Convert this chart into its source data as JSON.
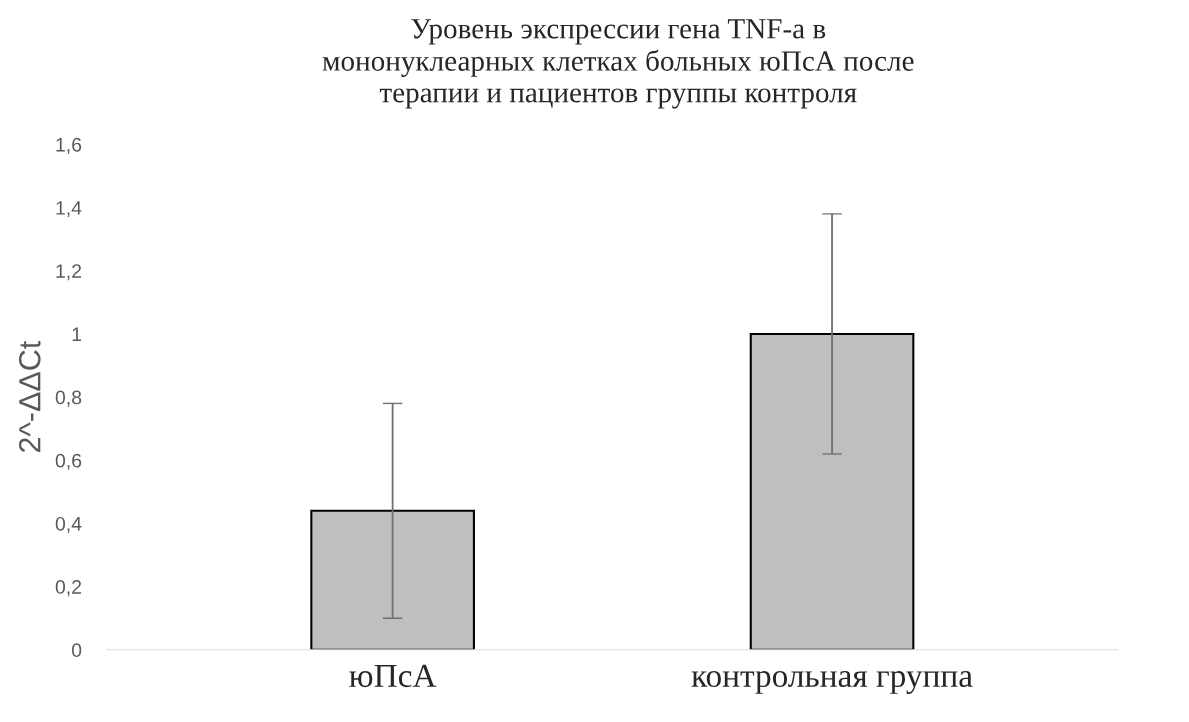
{
  "chart_data": {
    "type": "bar",
    "title": "Уровень экспрессии гена TNF-a в\nмононуклеарных клетках больных юПсА после\nтерапии и пациентов группы контроля",
    "ylabel": "2^-ΔΔCt",
    "categories": [
      "юПсА",
      "контрольная группа"
    ],
    "values": [
      0.44,
      1.0
    ],
    "errors": [
      0.34,
      0.38
    ],
    "color": "#bfbfbf",
    "ylim": [
      0,
      1.6
    ],
    "yticks": [
      {
        "value": 0,
        "label": "0"
      },
      {
        "value": 0.2,
        "label": "0,2"
      },
      {
        "value": 0.4,
        "label": "0,4"
      },
      {
        "value": 0.6,
        "label": "0,6"
      },
      {
        "value": 0.8,
        "label": "0,8"
      },
      {
        "value": 1,
        "label": "1"
      },
      {
        "value": 1.2,
        "label": "1,2"
      },
      {
        "value": 1.4,
        "label": "1,4"
      },
      {
        "value": 1.6,
        "label": "1,6"
      }
    ],
    "grid": false
  }
}
